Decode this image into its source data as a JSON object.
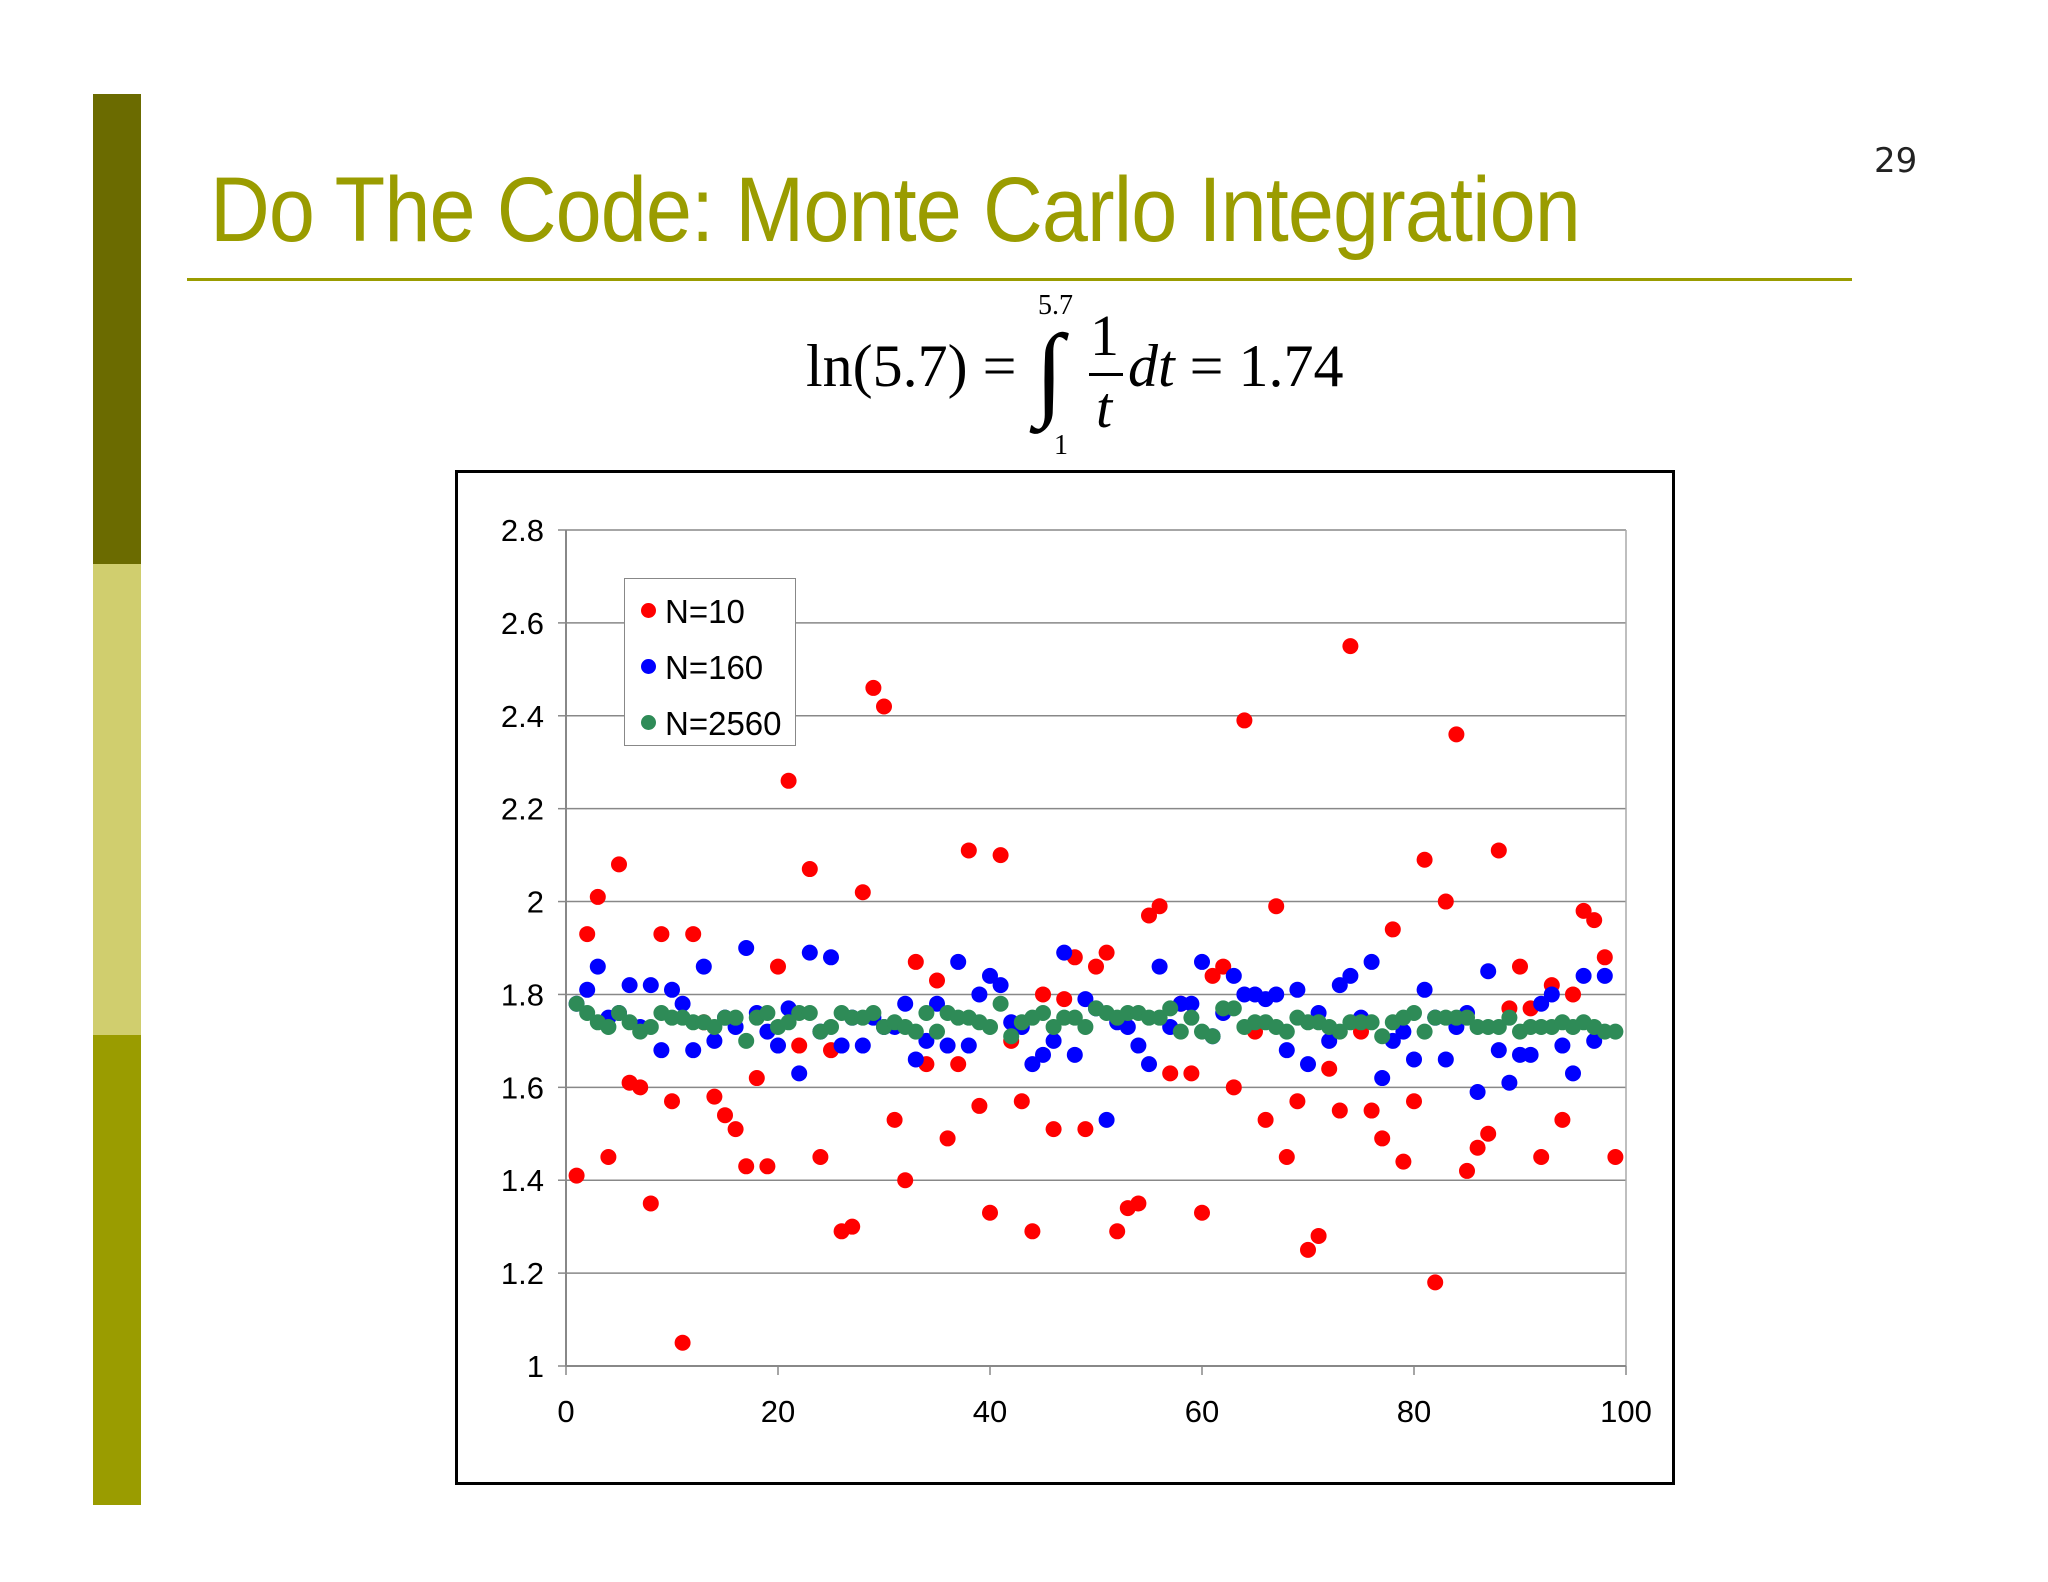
{
  "slide": {
    "page_number": "29",
    "title": "Do The Code: Monte Carlo Integration",
    "formula": {
      "lhs": "ln(5.7) =",
      "upper_limit": "5.7",
      "lower_limit": "1",
      "integral_sign": "∫",
      "numerator": "1",
      "denominator": "t",
      "integrand_tail": "dt",
      "rhs": "= 1.74"
    },
    "colors": {
      "bar_dark": "#6B6B00",
      "bar_light": "#D0CE6E",
      "bar_mid": "#9A9C00",
      "title": "#9A9C00",
      "rule": "#9A9C00"
    }
  },
  "chart_data": {
    "type": "scatter",
    "title": "",
    "xlabel": "",
    "ylabel": "",
    "xlim": [
      0,
      100
    ],
    "ylim": [
      1,
      2.8
    ],
    "x_ticks": [
      "0",
      "20",
      "40",
      "60",
      "80",
      "100"
    ],
    "y_ticks": [
      "1",
      "1.2",
      "1.4",
      "1.6",
      "1.8",
      "2",
      "2.2",
      "2.4",
      "2.6",
      "2.8"
    ],
    "grid": "horizontal",
    "legend_position": "top-left",
    "series": [
      {
        "name": "N=10",
        "color": "#FF0000",
        "points": [
          [
            1,
            1.41
          ],
          [
            2,
            1.93
          ],
          [
            3,
            2.01
          ],
          [
            4,
            1.45
          ],
          [
            5,
            2.08
          ],
          [
            6,
            1.61
          ],
          [
            7,
            1.6
          ],
          [
            8,
            1.35
          ],
          [
            9,
            1.93
          ],
          [
            10,
            1.57
          ],
          [
            11,
            1.05
          ],
          [
            12,
            1.93
          ],
          [
            13,
            1.74
          ],
          [
            14,
            1.58
          ],
          [
            15,
            1.54
          ],
          [
            16,
            1.51
          ],
          [
            17,
            1.43
          ],
          [
            18,
            1.62
          ],
          [
            19,
            1.43
          ],
          [
            20,
            1.86
          ],
          [
            21,
            2.26
          ],
          [
            22,
            1.69
          ],
          [
            23,
            2.07
          ],
          [
            24,
            1.45
          ],
          [
            25,
            1.68
          ],
          [
            26,
            1.29
          ],
          [
            27,
            1.3
          ],
          [
            28,
            2.02
          ],
          [
            29,
            2.46
          ],
          [
            30,
            2.42
          ],
          [
            31,
            1.53
          ],
          [
            32,
            1.4
          ],
          [
            33,
            1.87
          ],
          [
            34,
            1.65
          ],
          [
            35,
            1.83
          ],
          [
            36,
            1.49
          ],
          [
            37,
            1.65
          ],
          [
            38,
            2.11
          ],
          [
            39,
            1.56
          ],
          [
            40,
            1.33
          ],
          [
            41,
            2.1
          ],
          [
            42,
            1.7
          ],
          [
            43,
            1.57
          ],
          [
            44,
            1.29
          ],
          [
            45,
            1.8
          ],
          [
            46,
            1.51
          ],
          [
            47,
            1.79
          ],
          [
            48,
            1.88
          ],
          [
            49,
            1.51
          ],
          [
            50,
            1.86
          ],
          [
            51,
            1.89
          ],
          [
            52,
            1.29
          ],
          [
            53,
            1.34
          ],
          [
            54,
            1.35
          ],
          [
            55,
            1.97
          ],
          [
            56,
            1.99
          ],
          [
            57,
            1.63
          ],
          [
            58,
            1.78
          ],
          [
            59,
            1.63
          ],
          [
            60,
            1.33
          ],
          [
            61,
            1.84
          ],
          [
            62,
            1.86
          ],
          [
            63,
            1.6
          ],
          [
            64,
            2.39
          ],
          [
            65,
            1.72
          ],
          [
            66,
            1.53
          ],
          [
            67,
            1.99
          ],
          [
            68,
            1.45
          ],
          [
            69,
            1.57
          ],
          [
            70,
            1.25
          ],
          [
            71,
            1.28
          ],
          [
            72,
            1.64
          ],
          [
            73,
            1.55
          ],
          [
            74,
            2.55
          ],
          [
            75,
            1.72
          ],
          [
            76,
            1.55
          ],
          [
            77,
            1.49
          ],
          [
            78,
            1.94
          ],
          [
            79,
            1.44
          ],
          [
            80,
            1.57
          ],
          [
            81,
            2.09
          ],
          [
            82,
            1.18
          ],
          [
            83,
            2.0
          ],
          [
            84,
            2.36
          ],
          [
            85,
            1.42
          ],
          [
            86,
            1.47
          ],
          [
            87,
            1.5
          ],
          [
            88,
            2.11
          ],
          [
            89,
            1.77
          ],
          [
            90,
            1.86
          ],
          [
            91,
            1.77
          ],
          [
            92,
            1.45
          ],
          [
            93,
            1.82
          ],
          [
            94,
            1.53
          ],
          [
            95,
            1.8
          ],
          [
            96,
            1.98
          ],
          [
            97,
            1.96
          ],
          [
            98,
            1.88
          ],
          [
            99,
            1.45
          ]
        ]
      },
      {
        "name": "N=160",
        "color": "#0000FF",
        "points": [
          [
            1,
            1.78
          ],
          [
            2,
            1.81
          ],
          [
            3,
            1.86
          ],
          [
            4,
            1.75
          ],
          [
            5,
            1.76
          ],
          [
            6,
            1.82
          ],
          [
            7,
            1.73
          ],
          [
            8,
            1.82
          ],
          [
            9,
            1.68
          ],
          [
            10,
            1.81
          ],
          [
            11,
            1.78
          ],
          [
            12,
            1.68
          ],
          [
            13,
            1.86
          ],
          [
            14,
            1.7
          ],
          [
            15,
            1.75
          ],
          [
            16,
            1.73
          ],
          [
            17,
            1.9
          ],
          [
            18,
            1.76
          ],
          [
            19,
            1.72
          ],
          [
            20,
            1.69
          ],
          [
            21,
            1.77
          ],
          [
            22,
            1.63
          ],
          [
            23,
            1.89
          ],
          [
            24,
            1.72
          ],
          [
            25,
            1.88
          ],
          [
            26,
            1.69
          ],
          [
            27,
            1.75
          ],
          [
            28,
            1.69
          ],
          [
            29,
            1.75
          ],
          [
            30,
            1.73
          ],
          [
            31,
            1.73
          ],
          [
            32,
            1.78
          ],
          [
            33,
            1.66
          ],
          [
            34,
            1.7
          ],
          [
            35,
            1.78
          ],
          [
            36,
            1.69
          ],
          [
            37,
            1.87
          ],
          [
            38,
            1.69
          ],
          [
            39,
            1.8
          ],
          [
            40,
            1.84
          ],
          [
            41,
            1.82
          ],
          [
            42,
            1.74
          ],
          [
            43,
            1.73
          ],
          [
            44,
            1.65
          ],
          [
            45,
            1.67
          ],
          [
            46,
            1.7
          ],
          [
            47,
            1.89
          ],
          [
            48,
            1.67
          ],
          [
            49,
            1.79
          ],
          [
            50,
            1.77
          ],
          [
            51,
            1.53
          ],
          [
            52,
            1.74
          ],
          [
            53,
            1.73
          ],
          [
            54,
            1.69
          ],
          [
            55,
            1.65
          ],
          [
            56,
            1.86
          ],
          [
            57,
            1.73
          ],
          [
            58,
            1.78
          ],
          [
            59,
            1.78
          ],
          [
            60,
            1.87
          ],
          [
            61,
            1.71
          ],
          [
            62,
            1.76
          ],
          [
            63,
            1.84
          ],
          [
            64,
            1.8
          ],
          [
            65,
            1.8
          ],
          [
            66,
            1.79
          ],
          [
            67,
            1.8
          ],
          [
            68,
            1.68
          ],
          [
            69,
            1.81
          ],
          [
            70,
            1.65
          ],
          [
            71,
            1.76
          ],
          [
            72,
            1.7
          ],
          [
            73,
            1.82
          ],
          [
            74,
            1.84
          ],
          [
            75,
            1.75
          ],
          [
            76,
            1.87
          ],
          [
            77,
            1.62
          ],
          [
            78,
            1.7
          ],
          [
            79,
            1.72
          ],
          [
            80,
            1.66
          ],
          [
            81,
            1.81
          ],
          [
            82,
            1.75
          ],
          [
            83,
            1.66
          ],
          [
            84,
            1.73
          ],
          [
            85,
            1.76
          ],
          [
            86,
            1.59
          ],
          [
            87,
            1.85
          ],
          [
            88,
            1.68
          ],
          [
            89,
            1.61
          ],
          [
            90,
            1.67
          ],
          [
            91,
            1.67
          ],
          [
            92,
            1.78
          ],
          [
            93,
            1.8
          ],
          [
            94,
            1.69
          ],
          [
            95,
            1.63
          ],
          [
            96,
            1.84
          ],
          [
            97,
            1.7
          ],
          [
            98,
            1.84
          ]
        ]
      },
      {
        "name": "N=2560",
        "color": "#2E8B57",
        "points": [
          [
            1,
            1.78
          ],
          [
            2,
            1.76
          ],
          [
            3,
            1.74
          ],
          [
            4,
            1.73
          ],
          [
            5,
            1.76
          ],
          [
            6,
            1.74
          ],
          [
            7,
            1.72
          ],
          [
            8,
            1.73
          ],
          [
            9,
            1.76
          ],
          [
            10,
            1.75
          ],
          [
            11,
            1.75
          ],
          [
            12,
            1.74
          ],
          [
            13,
            1.74
          ],
          [
            14,
            1.73
          ],
          [
            15,
            1.75
          ],
          [
            16,
            1.75
          ],
          [
            17,
            1.7
          ],
          [
            18,
            1.75
          ],
          [
            19,
            1.76
          ],
          [
            20,
            1.73
          ],
          [
            21,
            1.74
          ],
          [
            22,
            1.76
          ],
          [
            23,
            1.76
          ],
          [
            24,
            1.72
          ],
          [
            25,
            1.73
          ],
          [
            26,
            1.76
          ],
          [
            27,
            1.75
          ],
          [
            28,
            1.75
          ],
          [
            29,
            1.76
          ],
          [
            30,
            1.73
          ],
          [
            31,
            1.74
          ],
          [
            32,
            1.73
          ],
          [
            33,
            1.72
          ],
          [
            34,
            1.76
          ],
          [
            35,
            1.72
          ],
          [
            36,
            1.76
          ],
          [
            37,
            1.75
          ],
          [
            38,
            1.75
          ],
          [
            39,
            1.74
          ],
          [
            40,
            1.73
          ],
          [
            41,
            1.78
          ],
          [
            42,
            1.71
          ],
          [
            43,
            1.74
          ],
          [
            44,
            1.75
          ],
          [
            45,
            1.76
          ],
          [
            46,
            1.73
          ],
          [
            47,
            1.75
          ],
          [
            48,
            1.75
          ],
          [
            49,
            1.73
          ],
          [
            50,
            1.77
          ],
          [
            51,
            1.76
          ],
          [
            52,
            1.75
          ],
          [
            53,
            1.76
          ],
          [
            54,
            1.76
          ],
          [
            55,
            1.75
          ],
          [
            56,
            1.75
          ],
          [
            57,
            1.77
          ],
          [
            58,
            1.72
          ],
          [
            59,
            1.75
          ],
          [
            60,
            1.72
          ],
          [
            61,
            1.71
          ],
          [
            62,
            1.77
          ],
          [
            63,
            1.77
          ],
          [
            64,
            1.73
          ],
          [
            65,
            1.74
          ],
          [
            66,
            1.74
          ],
          [
            67,
            1.73
          ],
          [
            68,
            1.72
          ],
          [
            69,
            1.75
          ],
          [
            70,
            1.74
          ],
          [
            71,
            1.74
          ],
          [
            72,
            1.73
          ],
          [
            73,
            1.72
          ],
          [
            74,
            1.74
          ],
          [
            75,
            1.74
          ],
          [
            76,
            1.74
          ],
          [
            77,
            1.71
          ],
          [
            78,
            1.74
          ],
          [
            79,
            1.75
          ],
          [
            80,
            1.76
          ],
          [
            81,
            1.72
          ],
          [
            82,
            1.75
          ],
          [
            83,
            1.75
          ],
          [
            84,
            1.75
          ],
          [
            85,
            1.75
          ],
          [
            86,
            1.73
          ],
          [
            87,
            1.73
          ],
          [
            88,
            1.73
          ],
          [
            89,
            1.75
          ],
          [
            90,
            1.72
          ],
          [
            91,
            1.73
          ],
          [
            92,
            1.73
          ],
          [
            93,
            1.73
          ],
          [
            94,
            1.74
          ],
          [
            95,
            1.73
          ],
          [
            96,
            1.74
          ],
          [
            97,
            1.73
          ],
          [
            98,
            1.72
          ],
          [
            99,
            1.72
          ]
        ]
      }
    ]
  }
}
